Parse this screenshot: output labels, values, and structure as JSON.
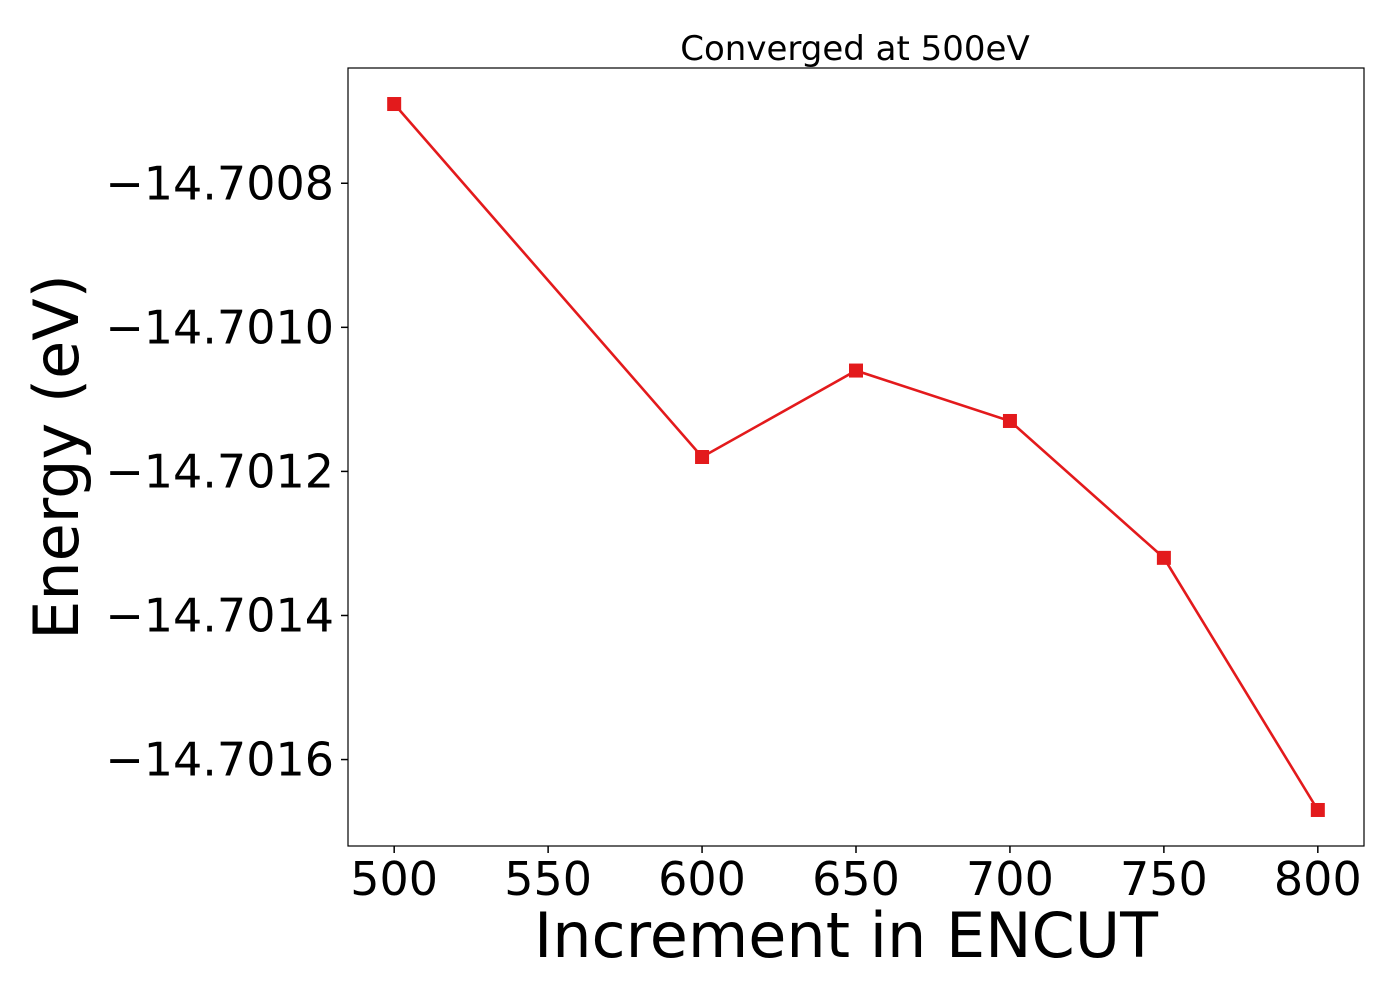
{
  "chart_data": {
    "type": "line",
    "title": "Converged at 500eV",
    "xlabel": "Increment in ENCUT",
    "ylabel": "Energy (eV)",
    "x": [
      500,
      600,
      650,
      700,
      750,
      800
    ],
    "series": [
      {
        "values": [
          -14.70069,
          -14.70118,
          -14.70106,
          -14.70113,
          -14.70132,
          -14.70167
        ],
        "color": "#e31a1c",
        "marker": "square"
      }
    ],
    "xticks": [
      500,
      550,
      600,
      650,
      700,
      750,
      800
    ],
    "xtick_labels": [
      "500",
      "550",
      "600",
      "650",
      "700",
      "750",
      "800"
    ],
    "yticks": [
      -14.7008,
      -14.701,
      -14.7012,
      -14.7014,
      -14.7016
    ],
    "ytick_labels": [
      "−14.7008",
      "−14.7010",
      "−14.7012",
      "−14.7014",
      "−14.7016"
    ],
    "xlim": [
      485,
      815
    ],
    "ylim": [
      -14.70172,
      -14.70064
    ],
    "grid": false,
    "legend": false
  }
}
